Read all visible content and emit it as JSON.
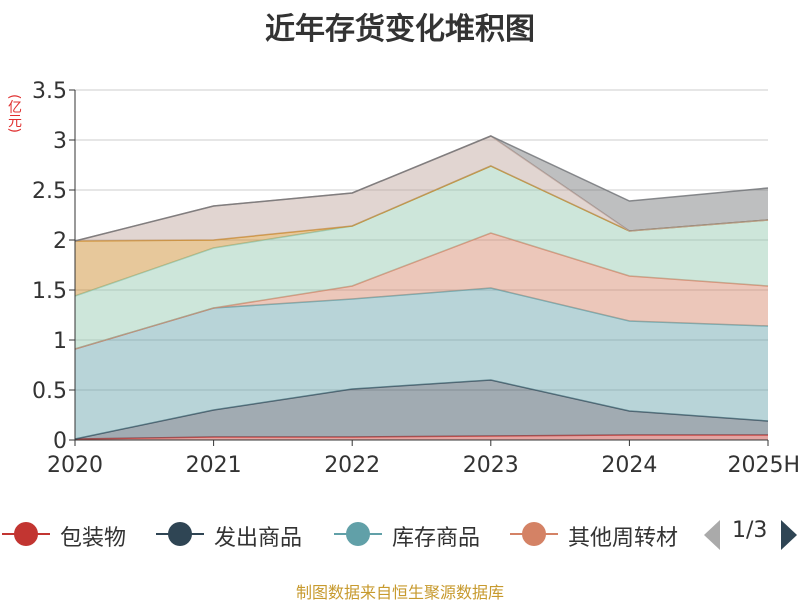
{
  "title": "近年存货变化堆积图",
  "unit": "(亿元)",
  "chart_data": {
    "type": "area",
    "stacked": true,
    "categories": [
      "2020",
      "2021",
      "2022",
      "2023",
      "2024",
      "2025H"
    ],
    "ylim": [
      0,
      3.5
    ],
    "yticks": [
      "0",
      "0.5",
      "1",
      "1.5",
      "2",
      "2.5",
      "3",
      "3.5"
    ],
    "grid": true,
    "series": [
      {
        "name": "包装物",
        "color": "#c23531",
        "values": [
          0.01,
          0.03,
          0.03,
          0.04,
          0.05,
          0.05
        ]
      },
      {
        "name": "发出商品",
        "color": "#2f4554",
        "values": [
          0.0,
          0.27,
          0.48,
          0.56,
          0.24,
          0.14
        ]
      },
      {
        "name": "库存商品",
        "color": "#61a0a8",
        "values": [
          0.9,
          1.02,
          0.9,
          0.92,
          0.9,
          0.95
        ]
      },
      {
        "name": "其他周转材料",
        "color": "#d48265",
        "values": [
          0.0,
          0.0,
          0.13,
          0.55,
          0.45,
          0.4
        ]
      },
      {
        "name": "",
        "color": "#91c7ae",
        "values": [
          0.53,
          0.6,
          0.6,
          0.67,
          0.45,
          0.66
        ]
      },
      {
        "name": "",
        "color": "#ca8622",
        "values": [
          0.55,
          0.08,
          0.0,
          0.0,
          0.0,
          0.0
        ]
      },
      {
        "name": "",
        "color": "#bda29a",
        "values": [
          0.0,
          0.34,
          0.33,
          0.3,
          0.0,
          0.0
        ]
      },
      {
        "name": "",
        "color": "#6e7074",
        "values": [
          0.0,
          0.0,
          0.0,
          0.0,
          0.3,
          0.32
        ]
      }
    ]
  },
  "legend": {
    "items": [
      "包装物",
      "发出商品",
      "库存商品",
      "其他周转材"
    ],
    "page": "1/3"
  },
  "source": "制图数据来自恒生聚源数据库"
}
